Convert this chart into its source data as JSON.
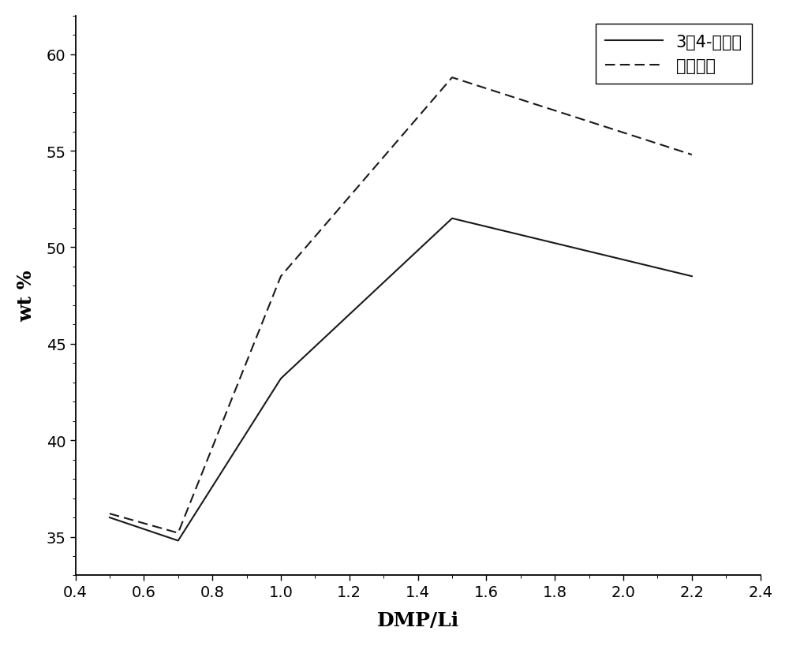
{
  "solid_x": [
    0.5,
    0.7,
    1.0,
    1.5,
    2.2
  ],
  "solid_y": [
    36.0,
    34.8,
    43.2,
    51.5,
    48.5
  ],
  "dashed_x": [
    0.5,
    0.7,
    1.0,
    1.5,
    2.2
  ],
  "dashed_y": [
    36.2,
    35.2,
    48.5,
    58.8,
    54.8
  ],
  "xlabel": "DMP/Li",
  "ylabel": "wt %",
  "legend_solid": "3，4-乙烯基",
  "legend_dashed": "总乙烯基",
  "xlim": [
    0.4,
    2.4
  ],
  "ylim": [
    33.0,
    62.0
  ],
  "xticks": [
    0.4,
    0.6,
    0.8,
    1.0,
    1.2,
    1.4,
    1.6,
    1.8,
    2.0,
    2.2,
    2.4
  ],
  "yticks": [
    35,
    40,
    45,
    50,
    55,
    60
  ],
  "line_color": "#1a1a1a",
  "background_color": "#ffffff"
}
